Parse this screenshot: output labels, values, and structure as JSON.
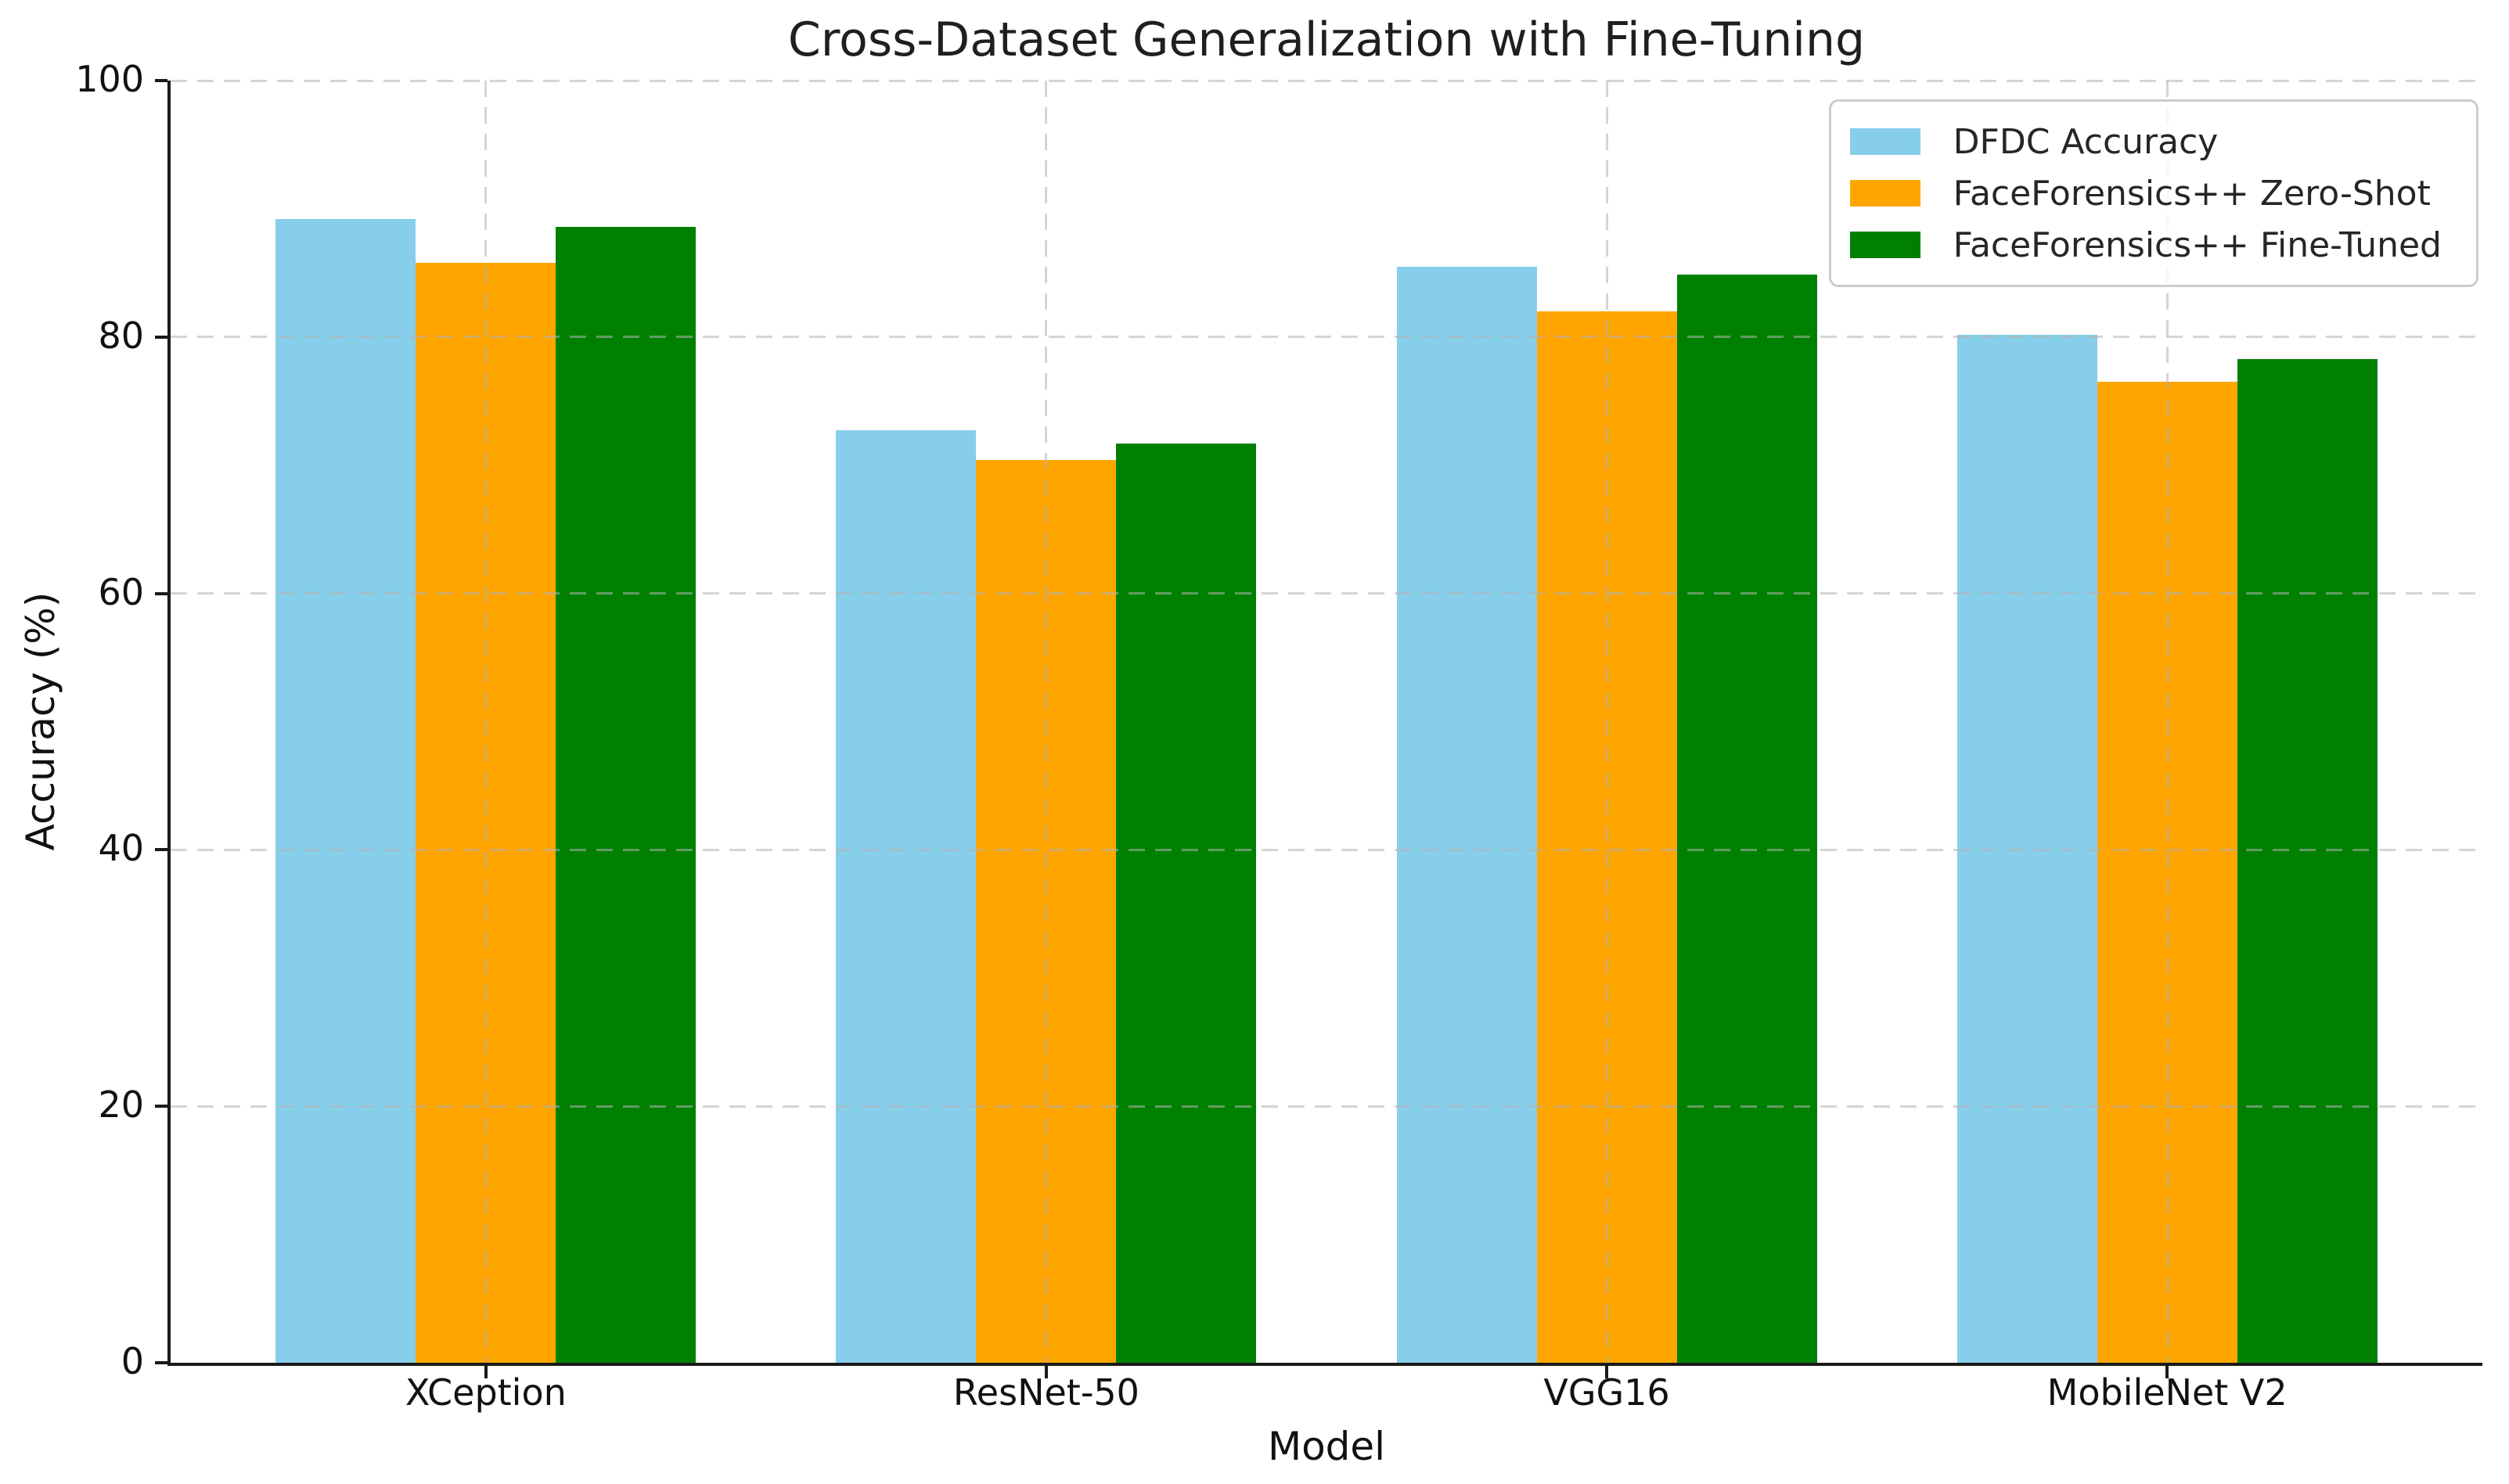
{
  "chart_data": {
    "type": "bar",
    "title": "Cross-Dataset Generalization with Fine-Tuning",
    "xlabel": "Model",
    "ylabel": "Accuracy (%)",
    "categories": [
      "XCeption",
      "ResNet-50",
      "VGG16",
      "MobileNet V2"
    ],
    "series": [
      {
        "name": "DFDC Accuracy",
        "color": "#87CEEB",
        "values": [
          89.2,
          72.7,
          85.5,
          80.2
        ]
      },
      {
        "name": "FaceForensics++ Zero-Shot",
        "color": "#FFA500",
        "values": [
          85.8,
          70.4,
          82.0,
          76.5
        ]
      },
      {
        "name": "FaceForensics++ Fine-Tuned",
        "color": "#008000",
        "values": [
          88.6,
          71.7,
          84.9,
          78.3
        ]
      }
    ],
    "ylim": [
      0,
      100
    ],
    "yticks": [
      0,
      20,
      40,
      60,
      80,
      100
    ],
    "bar_width": 0.25,
    "grid": "dashed",
    "legend_position": "upper right"
  }
}
